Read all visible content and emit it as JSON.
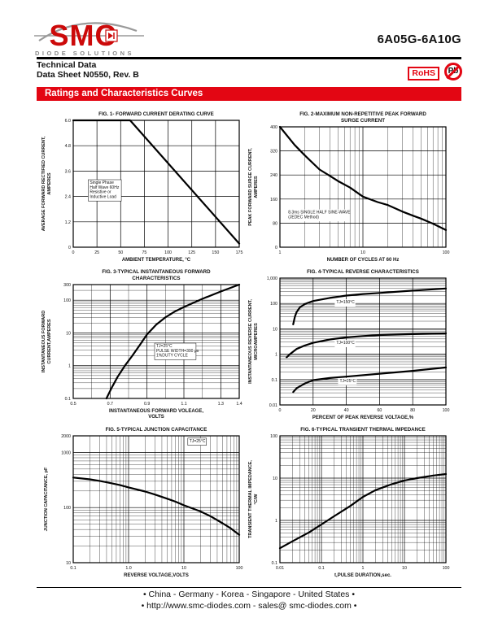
{
  "header": {
    "logo": {
      "brand": "SMC",
      "tagline": "DIODE SOLUTIONS"
    },
    "part_number": "6A05G-6A10G",
    "doc_type": "Technical Data",
    "doc_ref": "Data Sheet N0550, Rev. B",
    "rohs_label": "RoHS",
    "pb_label": "Pb"
  },
  "banner": {
    "title": "Ratings and Characteristics Curves"
  },
  "footer": {
    "locations": "• China  -  Germany  -  Korea  -  Singapore  -  United States •",
    "contact": "• http://www.smc-diodes.com  -  sales@ smc-diodes.com •"
  },
  "colors": {
    "accent_red": "#e30613",
    "text": "#111111",
    "curve": "#000000"
  },
  "chart_data": [
    {
      "type": "line",
      "title_lines": [
        "FIG. 1- FORWARD CURRENT DERATING CURVE"
      ],
      "xlabel_lines": [
        "AMBIENT TEMPERATURE, °C"
      ],
      "ylabel_lines": [
        "AVERAGE FORWARD RECTIFIED CURRENT,",
        "AMPERES"
      ],
      "x": {
        "type": "linear",
        "min": 0,
        "max": 175,
        "ticks": [
          0,
          25,
          50,
          75,
          100,
          125,
          150,
          175
        ],
        "tick_labels": [
          "0",
          "25",
          "50",
          "75",
          "100",
          "125",
          "150",
          "175"
        ]
      },
      "y": {
        "type": "linear",
        "min": 0,
        "max": 6,
        "ticks": [
          0,
          1.2,
          2.4,
          3.6,
          4.8,
          6.0
        ],
        "tick_labels": [
          "0",
          "1.2",
          "2.4",
          "3.6",
          "4.8",
          "6.0"
        ]
      },
      "series": [
        {
          "name": "average-forward-current",
          "points": [
            [
              0,
              6
            ],
            [
              60,
              6
            ],
            [
              175,
              0.17
            ]
          ]
        }
      ],
      "annotations": [
        {
          "lines": [
            "Single Phase",
            "Half Wave 60Hz",
            "Resistive or",
            "Inductive Load"
          ],
          "fx": 0.1,
          "fy": 0.5,
          "boxed": true
        }
      ]
    },
    {
      "type": "line",
      "title_lines": [
        "FIG. 2-MAXIMUM NON-REPETITIVE PEAK FORWARD",
        "SURGE CURRENT"
      ],
      "xlabel_lines": [
        "NUMBER OF CYCLES AT 60 Hz"
      ],
      "ylabel_lines": [
        "PEAK  FORWARD SURGE CURRENT,",
        "AMPERES"
      ],
      "x": {
        "type": "log",
        "min": 1,
        "max": 100,
        "ticks": [
          1,
          10,
          100
        ],
        "tick_labels": [
          "1",
          "10",
          "100"
        ]
      },
      "y": {
        "type": "linear",
        "min": 0,
        "max": 400,
        "ticks": [
          0,
          80,
          160,
          240,
          320,
          400
        ],
        "tick_labels": [
          "0",
          "80",
          "160",
          "240",
          "320",
          "400"
        ]
      },
      "series": [
        {
          "name": "peak-surge-current",
          "points": [
            [
              1,
              400
            ],
            [
              1.5,
              340
            ],
            [
              2,
              305
            ],
            [
              3,
              258
            ],
            [
              4,
              237
            ],
            [
              5,
              220
            ],
            [
              7,
              198
            ],
            [
              10,
              168
            ],
            [
              15,
              150
            ],
            [
              20,
              140
            ],
            [
              30,
              118
            ],
            [
              40,
              105
            ],
            [
              50,
              95
            ],
            [
              70,
              78
            ],
            [
              100,
              57
            ]
          ]
        }
      ],
      "annotations": [
        {
          "lines": [
            "8.3ms SINGLE HALF SINE-WAVE",
            "(JEDEC Method)"
          ],
          "fx": 0.05,
          "fy": 0.72,
          "boxed": false
        }
      ]
    },
    {
      "type": "line",
      "title_lines": [
        "FIG. 3-TYPICAL INSTANTANEOUS FORWARD",
        "CHARACTERISTICS"
      ],
      "xlabel_lines": [
        "INSTANTANEOUS FORWARD VOLEAGE,",
        "VOLTS"
      ],
      "ylabel_lines": [
        "INSTANTANEOUS FORWARD",
        "CURRENT,AMPERES"
      ],
      "x": {
        "type": "linear",
        "min": 0.5,
        "max": 1.4,
        "minor": 0.1,
        "ticks": [
          0.5,
          0.7,
          0.9,
          1.1,
          1.3,
          1.4
        ],
        "tick_labels": [
          "0.5",
          "0.7",
          "0.9",
          "1.1",
          "1.3",
          "1.4"
        ]
      },
      "y": {
        "type": "log",
        "min": 0.1,
        "max": 300,
        "ticks": [
          0.1,
          1,
          10,
          100,
          300
        ],
        "tick_labels": [
          "0.1",
          "1",
          "10",
          "100",
          "300"
        ]
      },
      "series": [
        {
          "name": "forward-vi",
          "points": [
            [
              0.68,
              0.1
            ],
            [
              0.71,
              0.22
            ],
            [
              0.74,
              0.45
            ],
            [
              0.78,
              1.0
            ],
            [
              0.82,
              2.0
            ],
            [
              0.86,
              4.2
            ],
            [
              0.9,
              9
            ],
            [
              0.95,
              18
            ],
            [
              1.0,
              30
            ],
            [
              1.05,
              45
            ],
            [
              1.1,
              62
            ],
            [
              1.2,
              110
            ],
            [
              1.3,
              185
            ],
            [
              1.4,
              300
            ]
          ]
        }
      ],
      "annotations": [
        {
          "lines": [
            "TJ=25°C",
            "PULSE WIDTH=300 μs",
            "1%DUTY CYCLE"
          ],
          "fx": 0.5,
          "fy": 0.55,
          "boxed": true
        }
      ]
    },
    {
      "type": "line",
      "title_lines": [
        "FIG. 4-TYPICAL REVERSE CHARACTERISTICS"
      ],
      "xlabel_lines": [
        "PERCENT OF PEAK REVERSE VOLTAGE,%"
      ],
      "ylabel_lines": [
        "INSTANTANEOUS REVERSE CURRENT,",
        "MICROAMPERES"
      ],
      "x": {
        "type": "linear",
        "min": 0,
        "max": 100,
        "ticks": [
          0,
          20,
          40,
          60,
          80,
          100
        ],
        "tick_labels": [
          "0",
          "20",
          "40",
          "60",
          "80",
          "100"
        ]
      },
      "y": {
        "type": "log",
        "min": 0.01,
        "max": 1000,
        "ticks": [
          0.01,
          0.1,
          1,
          10,
          100,
          1000
        ],
        "tick_labels": [
          "0.01",
          "0.1",
          "1",
          "10",
          "100",
          "1,000"
        ]
      },
      "series": [
        {
          "name": "tj-150c",
          "points": [
            [
              8,
              15
            ],
            [
              9,
              30
            ],
            [
              10,
              45
            ],
            [
              12,
              70
            ],
            [
              15,
              95
            ],
            [
              20,
              125
            ],
            [
              30,
              165
            ],
            [
              40,
              205
            ],
            [
              50,
              235
            ],
            [
              60,
              260
            ],
            [
              80,
              320
            ],
            [
              100,
              390
            ]
          ]
        },
        {
          "name": "tj-100c",
          "points": [
            [
              4,
              0.75
            ],
            [
              6,
              1.0
            ],
            [
              10,
              1.6
            ],
            [
              15,
              2.2
            ],
            [
              20,
              2.8
            ],
            [
              30,
              3.8
            ],
            [
              40,
              4.6
            ],
            [
              50,
              5.2
            ],
            [
              60,
              5.7
            ],
            [
              80,
              6.2
            ],
            [
              100,
              6.6
            ]
          ]
        },
        {
          "name": "tj-25c",
          "points": [
            [
              8,
              0.032
            ],
            [
              10,
              0.045
            ],
            [
              15,
              0.07
            ],
            [
              20,
              0.095
            ],
            [
              30,
              0.115
            ],
            [
              40,
              0.13
            ],
            [
              60,
              0.17
            ],
            [
              80,
              0.22
            ],
            [
              100,
              0.3
            ]
          ]
        }
      ],
      "annotations": [
        {
          "lines": [
            "TJ=150°C"
          ],
          "fx": 0.34,
          "fy": 0.2,
          "boxed": false
        },
        {
          "lines": [
            "TJ=100°C"
          ],
          "fx": 0.34,
          "fy": 0.52,
          "boxed": false
        },
        {
          "lines": [
            "TJ=25°C"
          ],
          "fx": 0.36,
          "fy": 0.82,
          "boxed": false
        }
      ]
    },
    {
      "type": "line",
      "title_lines": [
        "FIG. 5-TYPICAL JUNCTION CAPACITANCE"
      ],
      "xlabel_lines": [
        "REVERSE VOLTAGE,VOLTS"
      ],
      "ylabel_lines": [
        "JUNCTION CAPACITANCE, pF"
      ],
      "x": {
        "type": "log",
        "min": 0.1,
        "max": 100,
        "ticks": [
          0.1,
          1,
          10,
          100
        ],
        "tick_labels": [
          "0.1",
          "1.0",
          "10",
          "100"
        ]
      },
      "y": {
        "type": "log",
        "min": 10,
        "max": 2000,
        "ticks": [
          10,
          100,
          1000,
          2000
        ],
        "tick_labels": [
          "10",
          "100",
          "1000",
          "2000"
        ]
      },
      "series": [
        {
          "name": "junction-capacitance",
          "points": [
            [
              0.1,
              350
            ],
            [
              0.2,
              325
            ],
            [
              0.3,
              305
            ],
            [
              0.5,
              275
            ],
            [
              0.7,
              255
            ],
            [
              1,
              232
            ],
            [
              2,
              195
            ],
            [
              3,
              172
            ],
            [
              5,
              145
            ],
            [
              7,
              128
            ],
            [
              10,
              110
            ],
            [
              20,
              85
            ],
            [
              30,
              70
            ],
            [
              50,
              52
            ],
            [
              70,
              42
            ],
            [
              100,
              32
            ]
          ]
        }
      ],
      "annotations": [
        {
          "lines": [
            "TJ=25°C"
          ],
          "fx": 0.7,
          "fy": 0.05,
          "boxed": true
        }
      ]
    },
    {
      "type": "line",
      "title_lines": [
        "FIG. 6-TYPICAL TRANSIENT THERMAL IMPEDANCE"
      ],
      "xlabel_lines": [
        "t,PULSE DURATION,sec."
      ],
      "ylabel_lines": [
        "TRANSIENT THERMAL IMPEDANCE,",
        "°C/W"
      ],
      "x": {
        "type": "log",
        "min": 0.01,
        "max": 100,
        "ticks": [
          0.01,
          0.1,
          1,
          10,
          100
        ],
        "tick_labels": [
          "0.01",
          "0.1",
          "1",
          "10",
          "100"
        ]
      },
      "y": {
        "type": "log",
        "min": 0.1,
        "max": 100,
        "ticks": [
          0.1,
          1,
          10,
          100
        ],
        "tick_labels": [
          "0.1",
          "1",
          "10",
          "100"
        ]
      },
      "series": [
        {
          "name": "transient-thermal-impedance",
          "points": [
            [
              0.01,
              0.22
            ],
            [
              0.02,
              0.32
            ],
            [
              0.05,
              0.52
            ],
            [
              0.1,
              0.8
            ],
            [
              0.2,
              1.25
            ],
            [
              0.5,
              2.2
            ],
            [
              1,
              3.6
            ],
            [
              2,
              5.2
            ],
            [
              5,
              7.2
            ],
            [
              10,
              8.8
            ],
            [
              20,
              10
            ],
            [
              50,
              11.5
            ],
            [
              100,
              12.5
            ]
          ]
        }
      ],
      "annotations": []
    }
  ]
}
